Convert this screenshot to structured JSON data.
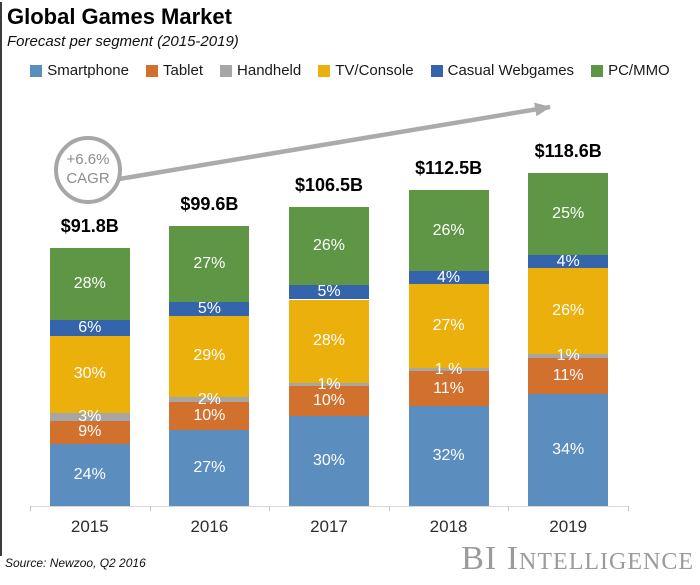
{
  "header": {
    "title": "Global Games Market",
    "subtitle": "Forecast per segment (2015-2019)"
  },
  "annotation": {
    "rate": "+6.6%",
    "label": "CAGR"
  },
  "footer": {
    "source": "Source: Newzoo, Q2 2016",
    "logo": "BI Intelligence"
  },
  "chart_data": {
    "type": "bar",
    "stacked": true,
    "title": "Global Games Market",
    "subtitle": "Forecast per segment (2015-2019)",
    "unit": "USD billions / percent of total",
    "categories": [
      "2015",
      "2016",
      "2017",
      "2018",
      "2019"
    ],
    "totals": [
      "$91.8B",
      "$99.6B",
      "$106.5B",
      "$112.5B",
      "$118.6B"
    ],
    "totals_billions": [
      91.8,
      99.6,
      106.5,
      112.5,
      118.6
    ],
    "annotation": "+6.6% CAGR",
    "legend_position": "top",
    "series": [
      {
        "name": "Smartphone",
        "color": "#5B8DBE",
        "values": [
          24,
          27,
          30,
          32,
          34
        ],
        "labels": [
          "24%",
          "27%",
          "30%",
          "32%",
          "34%"
        ]
      },
      {
        "name": "Tablet",
        "color": "#D2712E",
        "values": [
          9,
          10,
          10,
          11,
          11
        ],
        "labels": [
          "9%",
          "10%",
          "10%",
          "11%",
          "11%"
        ]
      },
      {
        "name": "Handheld",
        "color": "#A6A6A6",
        "values": [
          3,
          2,
          1,
          1,
          1
        ],
        "labels": [
          "3%",
          "2%",
          "1%",
          "1 %",
          "1%"
        ]
      },
      {
        "name": "TV/Console",
        "color": "#ECB00C",
        "values": [
          30,
          29,
          28,
          27,
          26
        ],
        "labels": [
          "30%",
          "29%",
          "28%",
          "27%",
          "26%"
        ]
      },
      {
        "name": "Casual Webgames",
        "color": "#3464AC",
        "values": [
          6,
          5,
          5,
          4,
          4
        ],
        "labels": [
          "6%",
          "5%",
          "5%",
          "4%",
          "4%"
        ]
      },
      {
        "name": "PC/MMO",
        "color": "#5E9646",
        "values": [
          28,
          27,
          26,
          26,
          25
        ],
        "labels": [
          "28%",
          "27%",
          "26%",
          "26%",
          "25%"
        ]
      }
    ]
  }
}
